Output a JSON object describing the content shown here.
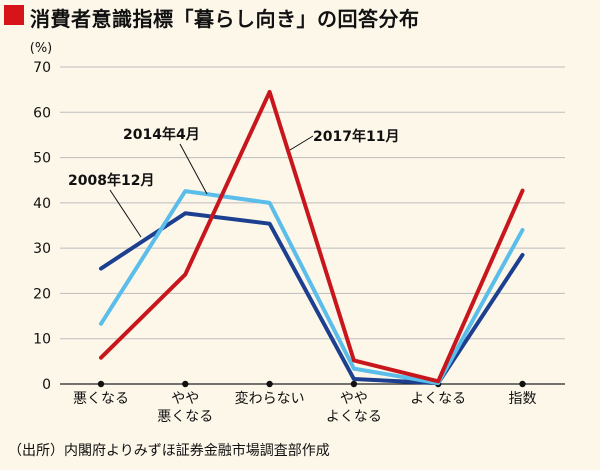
{
  "title": "消費者意識指標「暮らし向き」の回答分布",
  "source": "（出所）内閣府よりみずほ証券金融市場調査部作成",
  "colors": {
    "title_marker": "#d7141a",
    "background": "#fdf7ea",
    "gridline": "#bdbdbd"
  },
  "chart_data": {
    "type": "line",
    "title": "消費者意識指標「暮らし向き」の回答分布",
    "ylabel": "(%)",
    "ylim": [
      0,
      70
    ],
    "yticks": [
      "0",
      "10",
      "20",
      "30",
      "40",
      "50",
      "60",
      "70"
    ],
    "categories": [
      [
        "悪くなる"
      ],
      [
        "やや",
        "悪くなる"
      ],
      [
        "変わらない"
      ],
      [
        "やや",
        "よくなる"
      ],
      [
        "よくなる"
      ],
      [
        "指数"
      ]
    ],
    "grid": true,
    "series": [
      {
        "name": "2008年12月",
        "color": "#1c3f8f",
        "values": [
          25.5,
          37.7,
          35.4,
          1.1,
          0.2,
          28.5
        ]
      },
      {
        "name": "2014年4月",
        "color": "#5bbdea",
        "values": [
          13.3,
          42.6,
          40.0,
          3.4,
          0.2,
          34.0
        ]
      },
      {
        "name": "2017年11月",
        "color": "#c8161d",
        "values": [
          5.8,
          24.2,
          64.5,
          5.2,
          0.6,
          42.7
        ]
      }
    ]
  }
}
